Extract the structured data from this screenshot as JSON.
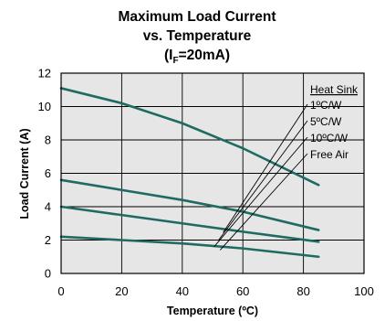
{
  "chart_data": {
    "type": "line",
    "title_lines": [
      "Maximum Load Current",
      "vs. Temperature"
    ],
    "title_param": {
      "open": "(I",
      "sub": "F",
      "close": "=20mA)"
    },
    "xlabel": "Temperature (ºC)",
    "ylabel": "Load Current (A)",
    "xlim": [
      0,
      100
    ],
    "ylim": [
      0,
      12
    ],
    "x_ticks": [
      "0",
      "20",
      "40",
      "60",
      "80",
      "100"
    ],
    "y_ticks": [
      "0",
      "2",
      "4",
      "6",
      "8",
      "10",
      "12"
    ],
    "x_tick_values": [
      0,
      20,
      40,
      60,
      80,
      100
    ],
    "y_tick_values": [
      0,
      2,
      4,
      6,
      8,
      10,
      12
    ],
    "grid": true,
    "background_color": "#e6e6e6",
    "line_color": "#1f6b63",
    "legend_title": "Heat Sink",
    "legend_placement": "top-right",
    "series": [
      {
        "name": "1ºC/W",
        "x": [
          0,
          20,
          40,
          60,
          85
        ],
        "y": [
          11.1,
          10.2,
          9.0,
          7.5,
          5.3
        ]
      },
      {
        "name": "5ºC/W",
        "x": [
          0,
          20,
          40,
          60,
          85
        ],
        "y": [
          5.6,
          5.0,
          4.4,
          3.7,
          2.6
        ]
      },
      {
        "name": "10ºC/W",
        "x": [
          0,
          20,
          40,
          60,
          85
        ],
        "y": [
          4.0,
          3.5,
          3.0,
          2.5,
          1.9
        ]
      },
      {
        "name": "Free Air",
        "x": [
          0,
          20,
          40,
          60,
          85
        ],
        "y": [
          2.2,
          2.0,
          1.8,
          1.5,
          1.0
        ]
      }
    ],
    "legend_pointer_targets": [
      {
        "series": "1ºC/W",
        "x": 53.5,
        "y": 2.45
      },
      {
        "series": "5ºC/W",
        "x": 52.0,
        "y": 2.0
      },
      {
        "series": "10ºC/W",
        "x": 50.5,
        "y": 1.6
      },
      {
        "series": "Free Air",
        "x": 52.5,
        "y": 1.4
      }
    ]
  }
}
